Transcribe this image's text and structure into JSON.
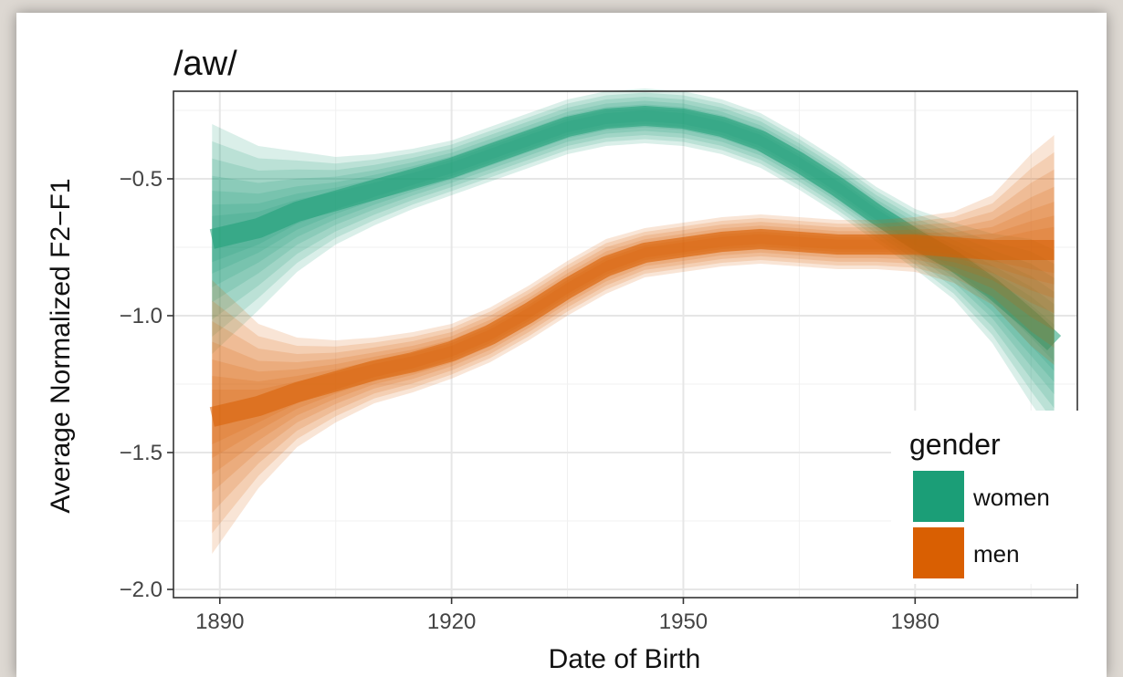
{
  "chart_data": {
    "type": "line",
    "title": "/aw/",
    "xlabel": "Date of Birth",
    "ylabel": "Average Normalized F2−F1",
    "xlim": [
      1884,
      2001
    ],
    "ylim": [
      -2.03,
      -0.18
    ],
    "x_ticks": [
      1890,
      1920,
      1950,
      1980
    ],
    "x_tick_labels": [
      "1890",
      "1920",
      "1950",
      "1980"
    ],
    "y_ticks": [
      -2.0,
      -1.5,
      -1.0,
      -0.5
    ],
    "y_tick_labels": [
      "−2.0",
      "−1.5",
      "−1.0",
      "−0.5"
    ],
    "grid": true,
    "legend": {
      "title": "gender",
      "placement": "bottom-right"
    },
    "x": [
      1889,
      1895,
      1900,
      1905,
      1910,
      1915,
      1920,
      1925,
      1930,
      1935,
      1940,
      1945,
      1950,
      1955,
      1960,
      1965,
      1970,
      1975,
      1980,
      1985,
      1990,
      1995,
      1998
    ],
    "series": [
      {
        "name": "women",
        "color": "#1b9e77",
        "values": [
          -0.72,
          -0.68,
          -0.62,
          -0.58,
          -0.54,
          -0.5,
          -0.46,
          -0.41,
          -0.36,
          -0.31,
          -0.28,
          -0.27,
          -0.28,
          -0.31,
          -0.36,
          -0.44,
          -0.53,
          -0.63,
          -0.72,
          -0.8,
          -0.9,
          -1.02,
          -1.1
        ],
        "band": [
          0.42,
          0.3,
          0.22,
          0.16,
          0.13,
          0.11,
          0.1,
          0.1,
          0.1,
          0.1,
          0.1,
          0.1,
          0.1,
          0.1,
          0.1,
          0.1,
          0.1,
          0.1,
          0.11,
          0.14,
          0.2,
          0.3,
          0.34
        ]
      },
      {
        "name": "men",
        "color": "#d95f02",
        "values": [
          -1.37,
          -1.33,
          -1.28,
          -1.24,
          -1.2,
          -1.17,
          -1.13,
          -1.07,
          -0.99,
          -0.9,
          -0.82,
          -0.77,
          -0.75,
          -0.73,
          -0.72,
          -0.73,
          -0.74,
          -0.74,
          -0.74,
          -0.75,
          -0.76,
          -0.76,
          -0.76
        ],
        "band": [
          0.5,
          0.3,
          0.2,
          0.15,
          0.12,
          0.11,
          0.1,
          0.1,
          0.1,
          0.1,
          0.1,
          0.09,
          0.09,
          0.09,
          0.09,
          0.09,
          0.09,
          0.09,
          0.1,
          0.13,
          0.2,
          0.35,
          0.42
        ]
      }
    ]
  }
}
